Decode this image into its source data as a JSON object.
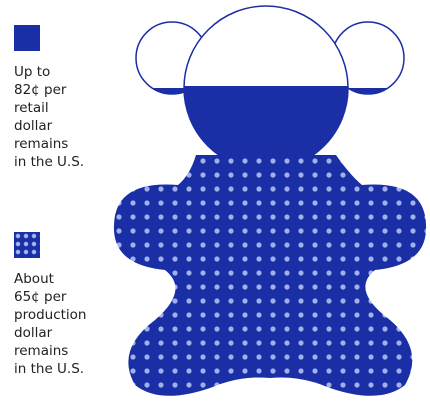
{
  "legend": [
    {
      "lines": [
        "Up to",
        "82¢ per",
        "retail",
        "dollar",
        "remains",
        "in the U.S."
      ]
    },
    {
      "lines": [
        "About",
        "65¢ per",
        "production",
        "dollar",
        "remains",
        "in the U.S."
      ]
    }
  ]
}
